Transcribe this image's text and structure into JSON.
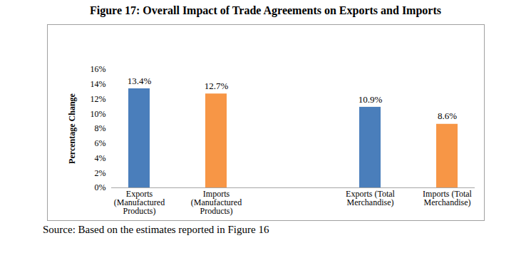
{
  "chart_data": {
    "type": "bar",
    "title": "Figure 17: Overall Impact of Trade Agreements on Exports and Imports",
    "caption": "Source: Based on the estimates reported in Figure 16",
    "y_label": "Percentage Change",
    "categories": [
      "Exports (Manufactured Products)",
      "Imports (Manufactured Products)",
      null,
      "Exports (Total Merchandise)",
      "Imports (Total Merchandise)"
    ],
    "values": [
      13.4,
      12.7,
      null,
      10.9,
      8.6
    ],
    "value_labels": [
      "13.4%",
      "12.7%",
      null,
      "10.9%",
      "8.6%"
    ],
    "colors": [
      "#4a7ebb",
      "#f79646",
      null,
      "#4a7ebb",
      "#f79646"
    ],
    "data_labels": true,
    "grid": false,
    "ylim": [
      0,
      16
    ],
    "yticks": [
      {
        "value": 0,
        "label": "0%"
      },
      {
        "value": 2,
        "label": "2%"
      },
      {
        "value": 4,
        "label": "4%"
      },
      {
        "value": 6,
        "label": "6%"
      },
      {
        "value": 8,
        "label": "8%"
      },
      {
        "value": 10,
        "label": "10%"
      },
      {
        "value": 12,
        "label": "12%"
      },
      {
        "value": 14,
        "label": "14%"
      },
      {
        "value": 16,
        "label": "16%"
      }
    ]
  }
}
